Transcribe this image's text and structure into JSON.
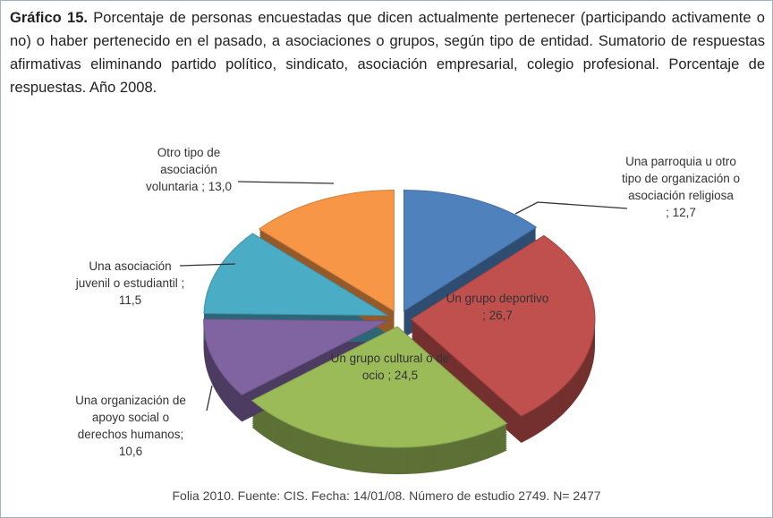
{
  "chart_data": {
    "type": "pie",
    "title_label": "Gráfico 15.",
    "title": "Porcentaje de personas encuestadas que dicen actualmente pertenecer (participando activamente o no) o haber pertenecido en el pasado, a asociaciones o grupos, según tipo de entidad. Sumatorio de respuestas afirmativas eliminando partido político, sindicato, asociación empresarial, colegio profesional. Porcentaje de respuestas. Año 2008.",
    "categories": [
      "Una parroquia u otro tipo de organización o asociación religiosa",
      "Un grupo deportivo",
      "Un grupo cultural o de ocio",
      "Una organización de apoyo social o derechos humanos",
      "Una asociación juvenil o estudiantil",
      "Otro tipo de asociación voluntaria"
    ],
    "values": [
      12.7,
      26.7,
      24.5,
      10.6,
      11.5,
      13.0
    ],
    "value_labels": [
      "12,7",
      "26,7",
      "24,5",
      "10,6",
      "11,5",
      "13,0"
    ],
    "colors": [
      "#4f81bd",
      "#c0504d",
      "#9bbb59",
      "#8064a2",
      "#4bacc6",
      "#f79646"
    ],
    "source": "Folia 2010. Fuente: CIS. Fecha: 14/01/08. Número de estudio 2749. N= 2477"
  }
}
